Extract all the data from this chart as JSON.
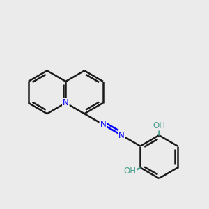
{
  "background_color": "#ebebeb",
  "bond_color": "#1a1a1a",
  "nitrogen_color": "#0000ff",
  "oxygen_color": "#ff0000",
  "oh_color": "#4a9e8e",
  "line_width": 1.8,
  "figsize": [
    3.0,
    3.0
  ],
  "dpi": 100,
  "xlim": [
    0,
    10
  ],
  "ylim": [
    0,
    10
  ]
}
